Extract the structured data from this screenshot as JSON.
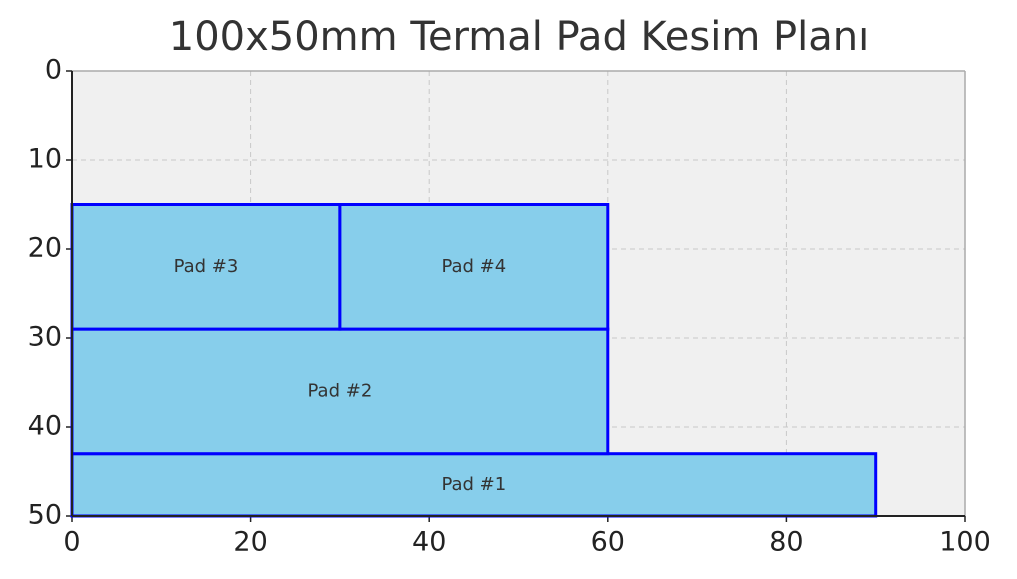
{
  "chart_data": {
    "type": "rectangles",
    "title": "100x50mm Termal Pad Kesim Planı",
    "xlim": [
      0,
      100
    ],
    "xticks": [
      0,
      20,
      40,
      60,
      80,
      100
    ],
    "ylim": [
      0,
      50
    ],
    "yticks": [
      0,
      10,
      20,
      30,
      40,
      50
    ],
    "y_inverted": true,
    "grid": true,
    "fill": "#87ceeb",
    "edge_color": "#0000ff",
    "rects": [
      {
        "label": "Pad #1",
        "x": 0,
        "y": 43,
        "width": 90,
        "height": 7
      },
      {
        "label": "Pad #2",
        "x": 0,
        "y": 29,
        "width": 60,
        "height": 14
      },
      {
        "label": "Pad #3",
        "x": 0,
        "y": 15,
        "width": 30,
        "height": 14
      },
      {
        "label": "Pad #4",
        "x": 30,
        "y": 15,
        "width": 30,
        "height": 14
      }
    ]
  }
}
